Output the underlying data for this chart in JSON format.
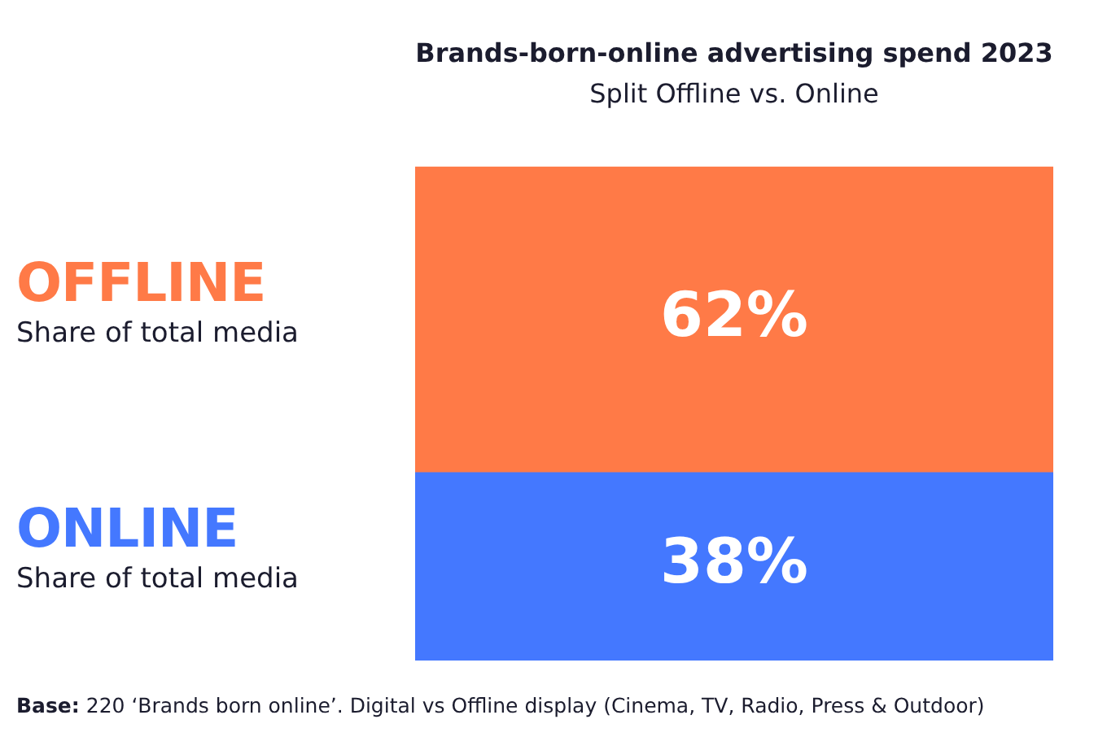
{
  "chart_data": {
    "type": "bar",
    "title": "Brands-born-online advertising spend 2023",
    "subtitle": "Split Offline vs. Online",
    "stacked": true,
    "legend": "left",
    "tick_labels": false,
    "categories": [
      null
    ],
    "series": [
      {
        "name": "ONLINE",
        "color": "#4478ff",
        "values": [
          38
        ],
        "value_labels": [
          "38%"
        ]
      },
      {
        "name": "OFFLINE",
        "color": "#ff7a47",
        "values": [
          62
        ],
        "value_labels": [
          "62%"
        ]
      }
    ],
    "annotations": [
      "Share of total media",
      "Share of total media",
      "Base: 220 ‘Brands born online’. Digital vs Offline display (Cinema, TV, Radio, Press & Outdoor)"
    ]
  }
}
